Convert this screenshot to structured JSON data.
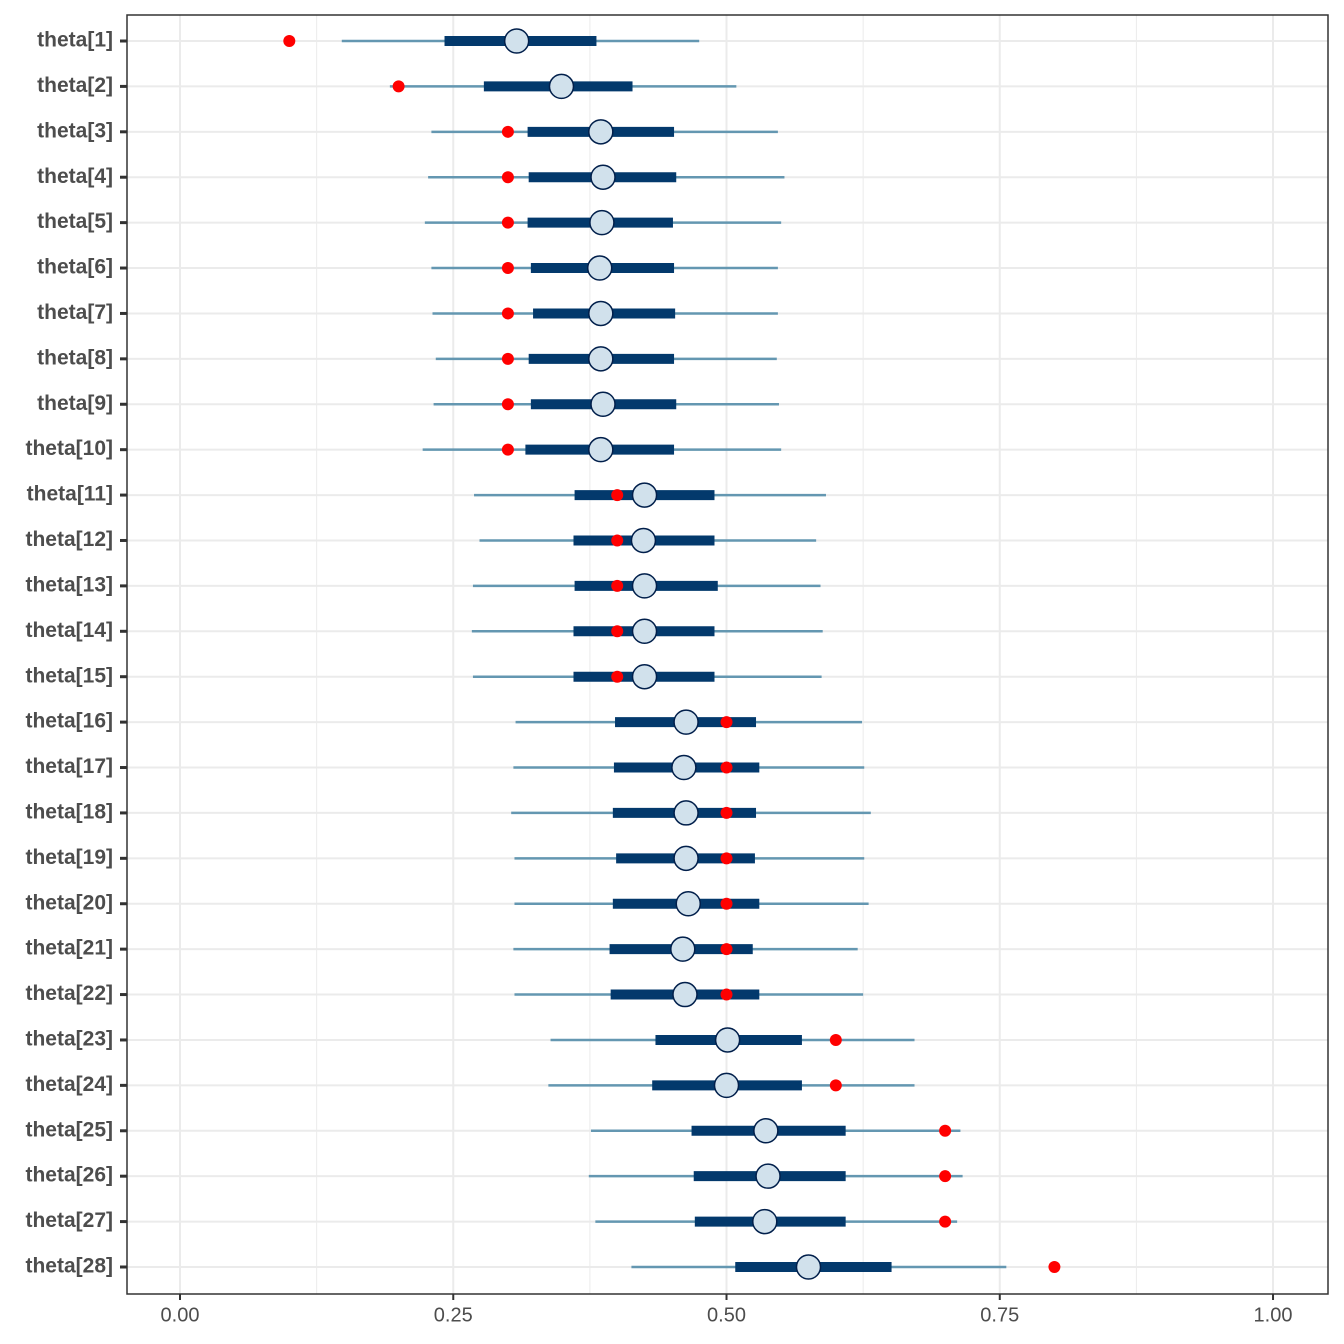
{
  "chart_data": {
    "type": "interval",
    "categories": [
      "theta[1]",
      "theta[2]",
      "theta[3]",
      "theta[4]",
      "theta[5]",
      "theta[6]",
      "theta[7]",
      "theta[8]",
      "theta[9]",
      "theta[10]",
      "theta[11]",
      "theta[12]",
      "theta[13]",
      "theta[14]",
      "theta[15]",
      "theta[16]",
      "theta[17]",
      "theta[18]",
      "theta[19]",
      "theta[20]",
      "theta[21]",
      "theta[22]",
      "theta[23]",
      "theta[24]",
      "theta[25]",
      "theta[26]",
      "theta[27]",
      "theta[28]"
    ],
    "outer_low": [
      0.148,
      0.192,
      0.23,
      0.227,
      0.224,
      0.23,
      0.231,
      0.234,
      0.232,
      0.222,
      0.269,
      0.274,
      0.268,
      0.267,
      0.268,
      0.307,
      0.305,
      0.303,
      0.306,
      0.306,
      0.305,
      0.306,
      0.339,
      0.337,
      0.376,
      0.374,
      0.38,
      0.413
    ],
    "inner_low": [
      0.242,
      0.278,
      0.318,
      0.319,
      0.318,
      0.321,
      0.323,
      0.319,
      0.321,
      0.316,
      0.361,
      0.36,
      0.361,
      0.36,
      0.36,
      0.398,
      0.397,
      0.396,
      0.399,
      0.396,
      0.393,
      0.394,
      0.435,
      0.432,
      0.468,
      0.47,
      0.471,
      0.508
    ],
    "median": [
      0.308,
      0.349,
      0.385,
      0.387,
      0.386,
      0.384,
      0.385,
      0.385,
      0.387,
      0.385,
      0.425,
      0.424,
      0.425,
      0.425,
      0.425,
      0.463,
      0.461,
      0.463,
      0.463,
      0.465,
      0.46,
      0.462,
      0.501,
      0.5,
      0.536,
      0.538,
      0.535,
      0.575
    ],
    "inner_high": [
      0.381,
      0.414,
      0.452,
      0.454,
      0.451,
      0.452,
      0.453,
      0.452,
      0.454,
      0.452,
      0.489,
      0.489,
      0.492,
      0.489,
      0.489,
      0.527,
      0.53,
      0.527,
      0.526,
      0.53,
      0.524,
      0.53,
      0.569,
      0.569,
      0.609,
      0.609,
      0.609,
      0.651
    ],
    "outer_high": [
      0.475,
      0.509,
      0.547,
      0.553,
      0.55,
      0.547,
      0.547,
      0.546,
      0.548,
      0.55,
      0.591,
      0.582,
      0.586,
      0.588,
      0.587,
      0.624,
      0.626,
      0.632,
      0.626,
      0.63,
      0.62,
      0.625,
      0.672,
      0.672,
      0.714,
      0.716,
      0.711,
      0.756
    ],
    "true_values": [
      0.1,
      0.2,
      0.3,
      0.3,
      0.3,
      0.3,
      0.3,
      0.3,
      0.3,
      0.3,
      0.4,
      0.4,
      0.4,
      0.4,
      0.4,
      0.5,
      0.5,
      0.5,
      0.5,
      0.5,
      0.5,
      0.5,
      0.6,
      0.6,
      0.7,
      0.7,
      0.7,
      0.8
    ],
    "colors": {
      "outer": "#6497b1",
      "inner": "#03396c",
      "median_fill": "#d1e1ec",
      "median_stroke": "#011f4b",
      "true": "#ff0000"
    },
    "xlim": [
      -0.0485,
      1.0503
    ],
    "xticks": [
      {
        "value": 0,
        "label": "0.00"
      },
      {
        "value": 0.25,
        "label": "0.25"
      },
      {
        "value": 0.5,
        "label": "0.50"
      },
      {
        "value": 0.75,
        "label": "0.75"
      },
      {
        "value": 1,
        "label": "1.00"
      }
    ],
    "minor_xticks": [
      0.125,
      0.375,
      0.625,
      0.875
    ],
    "grid": true
  }
}
